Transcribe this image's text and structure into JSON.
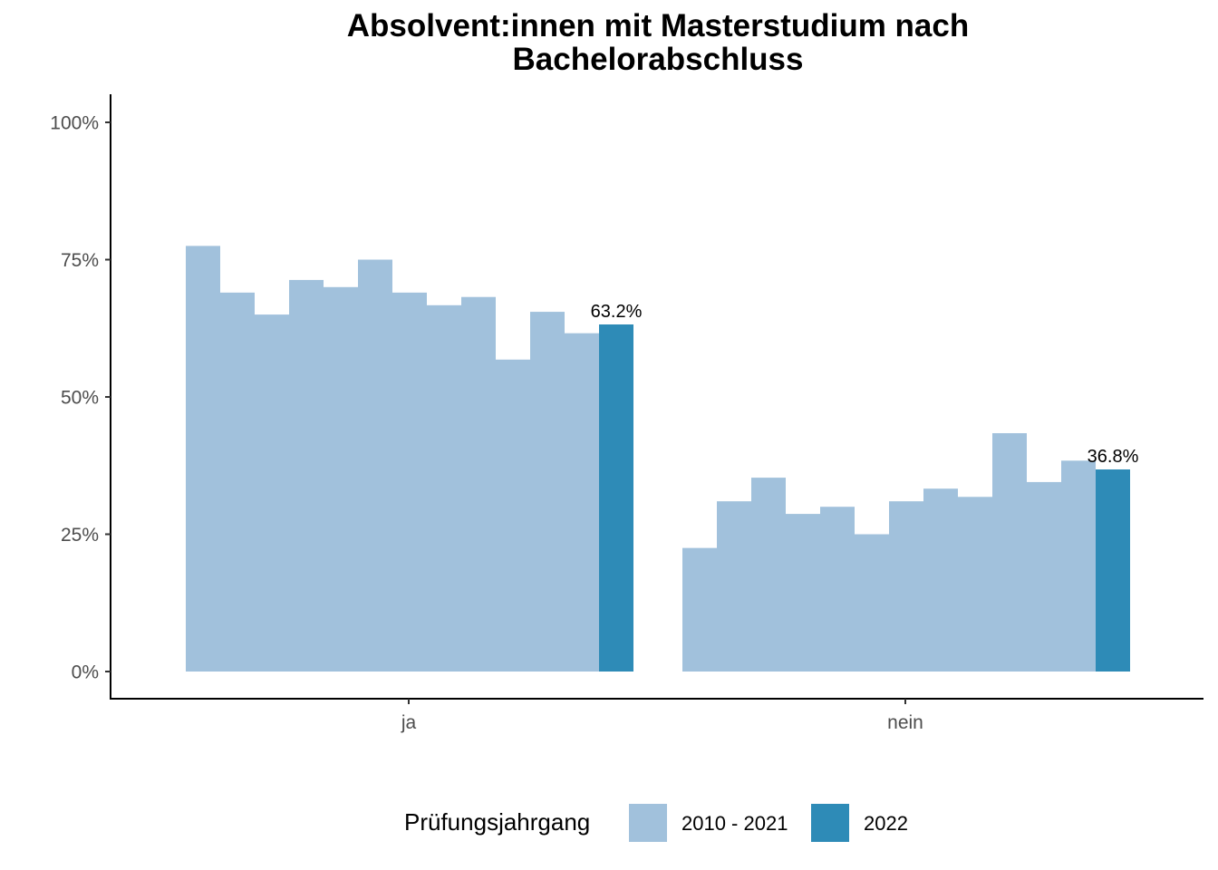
{
  "chart_data": {
    "type": "bar",
    "title": [
      "Absolvent:innen mit Masterstudium nach",
      "Bachelorabschluss"
    ],
    "categories": [
      "ja",
      "nein"
    ],
    "yticks": [
      "0%",
      "25%",
      "50%",
      "75%",
      "100%"
    ],
    "ylim": [
      0,
      100
    ],
    "legend": {
      "title": "Prüfungsjahrgang",
      "position": "bottom",
      "entries": [
        {
          "label": "2010 - 2021",
          "color": "#a1c1dc"
        },
        {
          "label": "2022",
          "color": "#2e8bb7"
        }
      ]
    },
    "series": [
      {
        "name": "2010 - 2021",
        "color": "#a1c1dc",
        "values": {
          "ja": [
            77.5,
            69.0,
            65.0,
            71.3,
            70.0,
            75.0,
            69.0,
            66.7,
            68.2,
            56.8,
            65.5,
            61.6
          ],
          "nein": [
            22.5,
            31.0,
            35.3,
            28.7,
            30.0,
            25.0,
            31.0,
            33.3,
            31.8,
            43.4,
            34.5,
            38.4
          ]
        }
      },
      {
        "name": "2022",
        "color": "#2e8bb7",
        "values": {
          "ja": [
            63.2
          ],
          "nein": [
            36.8
          ]
        },
        "labels": {
          "ja": "63.2%",
          "nein": "36.8%"
        }
      }
    ],
    "grid": false
  }
}
